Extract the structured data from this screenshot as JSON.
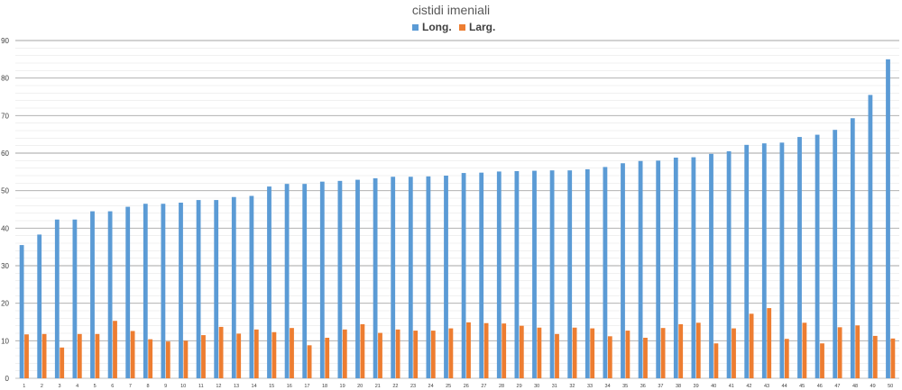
{
  "chart_data": {
    "type": "bar",
    "title": "cistidi imeniali",
    "xlabel": "",
    "ylabel": "",
    "ylim": [
      0,
      90
    ],
    "yticks": [
      0,
      10,
      20,
      30,
      40,
      50,
      60,
      70,
      80,
      90
    ],
    "grid": true,
    "legend_position": "top-center",
    "categories": [
      "1",
      "2",
      "3",
      "4",
      "5",
      "6",
      "7",
      "8",
      "9",
      "10",
      "11",
      "12",
      "13",
      "14",
      "15",
      "16",
      "17",
      "18",
      "19",
      "20",
      "21",
      "22",
      "23",
      "24",
      "25",
      "26",
      "27",
      "28",
      "29",
      "30",
      "31",
      "32",
      "33",
      "34",
      "35",
      "36",
      "37",
      "38",
      "39",
      "40",
      "41",
      "42",
      "43",
      "44",
      "45",
      "46",
      "47",
      "48",
      "49",
      "50"
    ],
    "series": [
      {
        "name": "Long.",
        "color": "#5b9bd5",
        "values": [
          35.5,
          38.3,
          42.3,
          42.3,
          44.5,
          44.5,
          45.7,
          46.5,
          46.5,
          46.8,
          47.5,
          47.5,
          48.3,
          48.6,
          51.1,
          51.8,
          51.8,
          52.4,
          52.6,
          52.9,
          53.3,
          53.7,
          53.7,
          53.8,
          54.0,
          54.7,
          54.8,
          55.1,
          55.2,
          55.3,
          55.4,
          55.4,
          55.7,
          56.3,
          57.3,
          57.9,
          58.0,
          58.8,
          58.9,
          59.8,
          60.5,
          62.2,
          62.6,
          62.8,
          64.3,
          64.9,
          66.2,
          69.3,
          75.5,
          85.0
        ]
      },
      {
        "name": "Larg.",
        "color": "#ed7d31",
        "values": [
          11.7,
          11.8,
          8.2,
          11.8,
          11.8,
          15.3,
          12.6,
          10.4,
          9.8,
          10.0,
          11.5,
          13.7,
          11.9,
          13.0,
          12.3,
          13.4,
          8.8,
          10.8,
          13.0,
          14.4,
          12.1,
          13.0,
          12.7,
          12.7,
          13.3,
          14.9,
          14.7,
          14.6,
          14.0,
          13.5,
          11.8,
          13.5,
          13.3,
          11.2,
          12.7,
          10.8,
          13.4,
          14.4,
          14.8,
          9.3,
          13.3,
          17.2,
          18.7,
          10.5,
          14.8,
          9.3,
          13.6,
          14.1,
          11.3,
          10.6
        ]
      }
    ]
  }
}
